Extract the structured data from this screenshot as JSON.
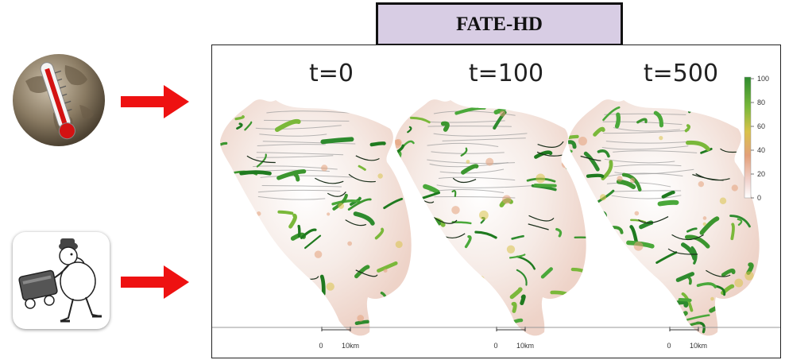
{
  "title": "FATE-HD",
  "panels": [
    {
      "label": "t=0",
      "scale_zero": "0",
      "scale_distance": "10km"
    },
    {
      "label": "t=100",
      "scale_zero": "0",
      "scale_distance": "10km"
    },
    {
      "label": "t=500",
      "scale_zero": "0",
      "scale_distance": "10km"
    }
  ],
  "legend": {
    "ticks": [
      "100",
      "80",
      "60",
      "40",
      "20",
      "0"
    ],
    "colors": [
      "#2e8b2e",
      "#7ab83a",
      "#d9c24a",
      "#e3a07a",
      "#f1d2cc",
      "#ffffff"
    ]
  },
  "inputs": [
    {
      "icon": "climate-thermometer-globe-icon"
    },
    {
      "icon": "seed-dispersal-cartoon-icon"
    }
  ],
  "arrow_color": "#ee1111"
}
